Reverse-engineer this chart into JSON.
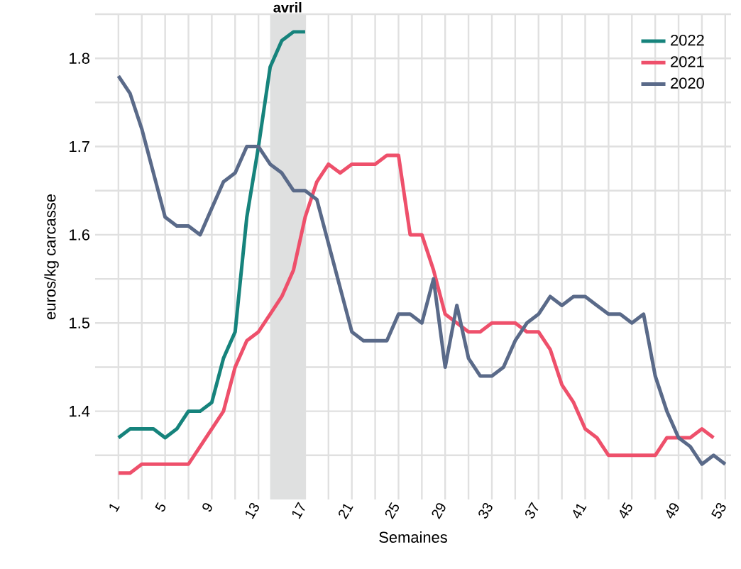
{
  "chart_data": {
    "type": "line",
    "xlabel": "Semaines",
    "ylabel": "euros/kg carcasse",
    "xlim": [
      -1,
      53.5
    ],
    "ylim": [
      1.3,
      1.85
    ],
    "xticks": [
      1,
      {
        "value": 3,
        "label": null
      },
      5,
      {
        "value": 7,
        "label": null
      },
      9,
      {
        "value": 11,
        "label": null
      },
      13,
      {
        "value": 15,
        "label": null
      },
      17,
      {
        "value": 19,
        "label": null
      },
      21,
      {
        "value": 23,
        "label": null
      },
      25,
      {
        "value": 27,
        "label": null
      },
      29,
      {
        "value": 31,
        "label": null
      },
      33,
      {
        "value": 35,
        "label": null
      },
      37,
      {
        "value": 39,
        "label": null
      },
      41,
      {
        "value": 43,
        "label": null
      },
      45,
      {
        "value": 47,
        "label": null
      },
      49,
      {
        "value": 51,
        "label": null
      },
      53
    ],
    "yticks": [
      {
        "value": 1.35,
        "label": null
      },
      1.4,
      {
        "value": 1.45,
        "label": null
      },
      1.5,
      {
        "value": 1.55,
        "label": null
      },
      1.6,
      {
        "value": 1.65,
        "label": null
      },
      1.7,
      {
        "value": 1.75,
        "label": null
      },
      1.8,
      {
        "value": 1.85,
        "label": null
      }
    ],
    "grid": true,
    "legend": "top right",
    "line_style": "solid",
    "marker": "none",
    "bands": [
      {
        "axis": "x",
        "from": 14,
        "to": 17,
        "label": "avril",
        "color": "#dfe0e0"
      }
    ],
    "series": [
      {
        "name": "2022",
        "color": "#16837c",
        "x": [
          1,
          2,
          3,
          4,
          5,
          6,
          7,
          8,
          9,
          10,
          11,
          12,
          13,
          14,
          15,
          16,
          17
        ],
        "values": [
          1.37,
          1.38,
          1.38,
          1.38,
          1.37,
          1.38,
          1.4,
          1.4,
          1.41,
          1.46,
          1.49,
          1.62,
          1.7,
          1.79,
          1.82,
          1.83,
          1.83
        ]
      },
      {
        "name": "2021",
        "color": "#ee506b",
        "x": [
          1,
          2,
          3,
          4,
          5,
          6,
          7,
          8,
          9,
          10,
          11,
          12,
          13,
          14,
          15,
          16,
          17,
          18,
          19,
          20,
          21,
          22,
          23,
          24,
          25,
          26,
          27,
          28,
          29,
          30,
          31,
          32,
          33,
          34,
          35,
          36,
          37,
          38,
          39,
          40,
          41,
          42,
          43,
          44,
          45,
          46,
          47,
          48,
          49,
          50,
          51,
          52
        ],
        "values": [
          1.33,
          1.33,
          1.34,
          1.34,
          1.34,
          1.34,
          1.34,
          1.36,
          1.38,
          1.4,
          1.45,
          1.48,
          1.49,
          1.51,
          1.53,
          1.56,
          1.62,
          1.66,
          1.68,
          1.67,
          1.68,
          1.68,
          1.68,
          1.69,
          1.69,
          1.6,
          1.6,
          1.56,
          1.51,
          1.5,
          1.49,
          1.49,
          1.5,
          1.5,
          1.5,
          1.49,
          1.49,
          1.47,
          1.43,
          1.41,
          1.38,
          1.37,
          1.35,
          1.35,
          1.35,
          1.35,
          1.35,
          1.37,
          1.37,
          1.37,
          1.38,
          1.37
        ]
      },
      {
        "name": "2020",
        "color": "#5a6a89",
        "x": [
          1,
          2,
          3,
          4,
          5,
          6,
          7,
          8,
          9,
          10,
          11,
          12,
          13,
          14,
          15,
          16,
          17,
          18,
          19,
          20,
          21,
          22,
          23,
          24,
          25,
          26,
          27,
          28,
          29,
          30,
          31,
          32,
          33,
          34,
          35,
          36,
          37,
          38,
          39,
          40,
          41,
          42,
          43,
          44,
          45,
          46,
          47,
          48,
          49,
          50,
          51,
          52,
          53
        ],
        "values": [
          1.78,
          1.76,
          1.72,
          1.67,
          1.62,
          1.61,
          1.61,
          1.6,
          1.63,
          1.66,
          1.67,
          1.7,
          1.7,
          1.68,
          1.67,
          1.65,
          1.65,
          1.64,
          1.59,
          1.54,
          1.49,
          1.48,
          1.48,
          1.48,
          1.51,
          1.51,
          1.5,
          1.55,
          1.45,
          1.52,
          1.46,
          1.44,
          1.44,
          1.45,
          1.48,
          1.5,
          1.51,
          1.53,
          1.52,
          1.53,
          1.53,
          1.52,
          1.51,
          1.51,
          1.5,
          1.51,
          1.44,
          1.4,
          1.37,
          1.36,
          1.34,
          1.35,
          1.34
        ]
      }
    ]
  }
}
